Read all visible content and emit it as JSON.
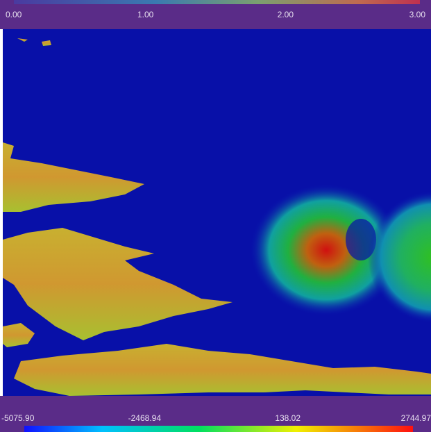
{
  "top_colorbar": {
    "labels": [
      "0.00",
      "1.00",
      "2.00",
      "3.00"
    ]
  },
  "bottom_colorbar": {
    "labels": [
      "-5075.90",
      "-2468.94",
      "138.02",
      "2744.97"
    ]
  }
}
